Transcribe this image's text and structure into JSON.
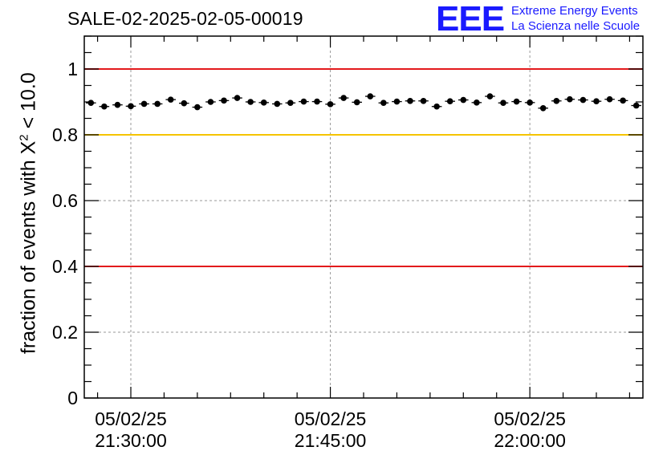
{
  "chart_data": {
    "type": "scatter",
    "title": "SALE-02-2025-02-05-00019",
    "ylabel": {
      "pre": "fraction of events with ",
      "chi": "X",
      "sup": "2",
      "post": " < 10.0"
    },
    "ylim": [
      0,
      1.1
    ],
    "yticks": [
      "0",
      "0.2",
      "0.4",
      "0.6",
      "0.8",
      "1"
    ],
    "ytick_values": [
      0,
      0.2,
      0.4,
      0.6,
      0.8,
      1.0
    ],
    "xlim_minutes": [
      0,
      42
    ],
    "xticks": [
      {
        "minute": 3.5,
        "date": "05/02/25",
        "time": "21:30:00"
      },
      {
        "minute": 18.5,
        "date": "05/02/25",
        "time": "21:45:00"
      },
      {
        "minute": 33.5,
        "date": "05/02/25",
        "time": "22:00:00"
      }
    ],
    "reference_lines": [
      {
        "y": 1.0,
        "color": "#e31a1c"
      },
      {
        "y": 0.8,
        "color": "#f5c400"
      },
      {
        "y": 0.4,
        "color": "#e31a1c"
      }
    ],
    "grid": true,
    "x": [
      0.5,
      1.5,
      2.5,
      3.5,
      4.5,
      5.5,
      6.5,
      7.5,
      8.5,
      9.5,
      10.5,
      11.5,
      12.5,
      13.5,
      14.5,
      15.5,
      16.5,
      17.5,
      18.5,
      19.5,
      20.5,
      21.5,
      22.5,
      23.5,
      24.5,
      25.5,
      26.5,
      27.5,
      28.5,
      29.5,
      30.5,
      31.5,
      32.5,
      33.5,
      34.5,
      35.5,
      36.5,
      37.5,
      38.5,
      39.5,
      40.5,
      41.5
    ],
    "values": [
      0.897,
      0.886,
      0.891,
      0.887,
      0.894,
      0.894,
      0.907,
      0.896,
      0.884,
      0.9,
      0.904,
      0.912,
      0.9,
      0.898,
      0.894,
      0.897,
      0.901,
      0.901,
      0.893,
      0.912,
      0.899,
      0.917,
      0.897,
      0.901,
      0.903,
      0.903,
      0.886,
      0.902,
      0.906,
      0.898,
      0.917,
      0.897,
      0.901,
      0.898,
      0.881,
      0.903,
      0.908,
      0.906,
      0.902,
      0.908,
      0.904,
      0.889
    ]
  },
  "logo": {
    "mark": "EEE",
    "line1": "Extreme Energy Events",
    "line2": "La Scienza nelle Scuole"
  },
  "colors": {
    "axis": "#000000",
    "grid": "#9a9a9a",
    "point": "#000000",
    "logo": "#1a1aff"
  }
}
